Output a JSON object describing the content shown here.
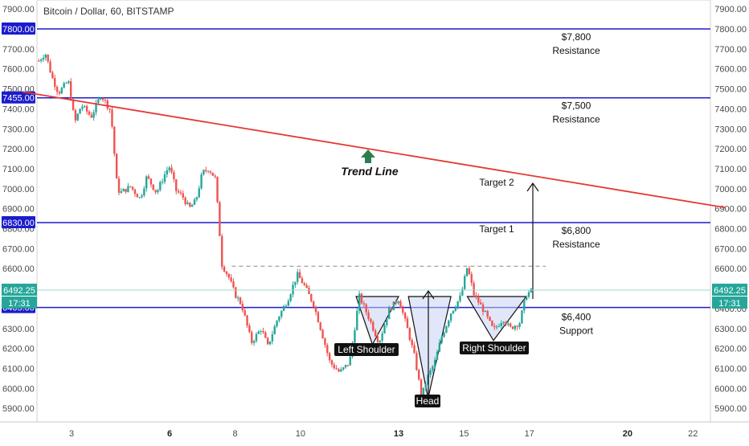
{
  "header": {
    "title": "Bitcoin / Dollar, 60, BITSTAMP"
  },
  "chart_data": {
    "type": "candlestick",
    "instrument": "Bitcoin / Dollar",
    "interval": "60",
    "exchange": "BITSTAMP",
    "ylim": [
      5850,
      7950
    ],
    "y_ticks": [
      "7900.00",
      "7800.00",
      "7700.00",
      "7600.00",
      "7500.00",
      "7400.00",
      "7300.00",
      "7200.00",
      "7100.00",
      "7000.00",
      "6900.00",
      "6800.00",
      "6700.00",
      "6600.00",
      "6500.00",
      "6400.00",
      "6300.00",
      "6200.00",
      "6100.00",
      "6000.00",
      "5900.00"
    ],
    "x_ticks": [
      {
        "label": "3",
        "day": 3,
        "bold": false
      },
      {
        "label": "6",
        "day": 6,
        "bold": true
      },
      {
        "label": "8",
        "day": 8,
        "bold": false
      },
      {
        "label": "10",
        "day": 10,
        "bold": false
      },
      {
        "label": "13",
        "day": 13,
        "bold": true
      },
      {
        "label": "15",
        "day": 15,
        "bold": false
      },
      {
        "label": "17",
        "day": 17,
        "bold": false
      },
      {
        "label": "20",
        "day": 20,
        "bold": true
      },
      {
        "label": "22",
        "day": 22,
        "bold": false
      }
    ],
    "price_path": [
      [
        2.0,
        7640
      ],
      [
        2.2,
        7680
      ],
      [
        2.4,
        7560
      ],
      [
        2.6,
        7480
      ],
      [
        2.9,
        7540
      ],
      [
        3.1,
        7330
      ],
      [
        3.3,
        7420
      ],
      [
        3.6,
        7360
      ],
      [
        3.9,
        7470
      ],
      [
        4.2,
        7390
      ],
      [
        4.4,
        7000
      ],
      [
        4.5,
        6980
      ],
      [
        4.8,
        7010
      ],
      [
        5.1,
        6950
      ],
      [
        5.3,
        7060
      ],
      [
        5.6,
        6980
      ],
      [
        5.9,
        7090
      ],
      [
        6.0,
        7110
      ],
      [
        6.2,
        6990
      ],
      [
        6.4,
        6960
      ],
      [
        6.6,
        6900
      ],
      [
        6.8,
        6940
      ],
      [
        7.0,
        7080
      ],
      [
        7.2,
        7100
      ],
      [
        7.4,
        7050
      ],
      [
        7.6,
        6620
      ],
      [
        7.8,
        6560
      ],
      [
        8.0,
        6470
      ],
      [
        8.2,
        6420
      ],
      [
        8.5,
        6230
      ],
      [
        8.8,
        6300
      ],
      [
        9.0,
        6210
      ],
      [
        9.3,
        6350
      ],
      [
        9.6,
        6440
      ],
      [
        9.9,
        6570
      ],
      [
        10.1,
        6520
      ],
      [
        10.4,
        6420
      ],
      [
        10.6,
        6310
      ],
      [
        10.9,
        6130
      ],
      [
        11.2,
        6080
      ],
      [
        11.5,
        6130
      ],
      [
        11.8,
        6460
      ],
      [
        12.1,
        6350
      ],
      [
        12.4,
        6230
      ],
      [
        12.7,
        6390
      ],
      [
        13.0,
        6450
      ],
      [
        13.3,
        6280
      ],
      [
        13.5,
        6150
      ],
      [
        13.7,
        5960
      ],
      [
        13.9,
        6060
      ],
      [
        14.1,
        6130
      ],
      [
        14.3,
        6250
      ],
      [
        14.6,
        6380
      ],
      [
        14.9,
        6460
      ],
      [
        15.1,
        6610
      ],
      [
        15.3,
        6470
      ],
      [
        15.6,
        6390
      ],
      [
        15.9,
        6290
      ],
      [
        16.2,
        6350
      ],
      [
        16.4,
        6300
      ],
      [
        16.7,
        6330
      ],
      [
        16.9,
        6470
      ],
      [
        17.1,
        6492
      ]
    ],
    "last_price": "6492.25",
    "countdown": "17:31",
    "horizontal_levels": [
      {
        "price": 7800,
        "label_value": "$7,800",
        "label_text": "Resistance",
        "color": "#1c1ccc"
      },
      {
        "price": 7455,
        "label_value": "$7,500",
        "label_text": "Resistance",
        "color": "#1c1ccc"
      },
      {
        "price": 6830,
        "label_value": "$6,800",
        "label_text": "Resistance",
        "color": "#1c1ccc"
      },
      {
        "price": 6405,
        "label_value": "$6,400",
        "label_text": "Support",
        "color": "#1c1ccc"
      }
    ],
    "neckline_price": 6612,
    "trend_line": {
      "label": "Trend Line",
      "from": [
        1.5,
        7485
      ],
      "to": [
        23.0,
        6905
      ],
      "color": "#e53935"
    },
    "targets": [
      {
        "label": "Target 2",
        "price": 7000
      },
      {
        "label": "Target 1",
        "price": 6800
      }
    ],
    "patterns": [
      {
        "label": "Left Shoulder",
        "points": [
          [
            11.7,
            6460
          ],
          [
            12.2,
            6220
          ],
          [
            13.0,
            6460
          ]
        ]
      },
      {
        "label": "Head",
        "points": [
          [
            13.3,
            6460
          ],
          [
            13.9,
            5950
          ],
          [
            14.6,
            6460
          ]
        ]
      },
      {
        "label": "Right Shoulder",
        "points": [
          [
            15.1,
            6460
          ],
          [
            15.9,
            6240
          ],
          [
            16.9,
            6460
          ]
        ]
      }
    ],
    "colors": {
      "up": "#26a69a",
      "down": "#ef5350",
      "level": "#1c1ccc",
      "trend": "#e53935",
      "badge_price": "#26a69a",
      "badge_time": "#26a69a",
      "pattern_fill": "#c9d3f2"
    }
  }
}
